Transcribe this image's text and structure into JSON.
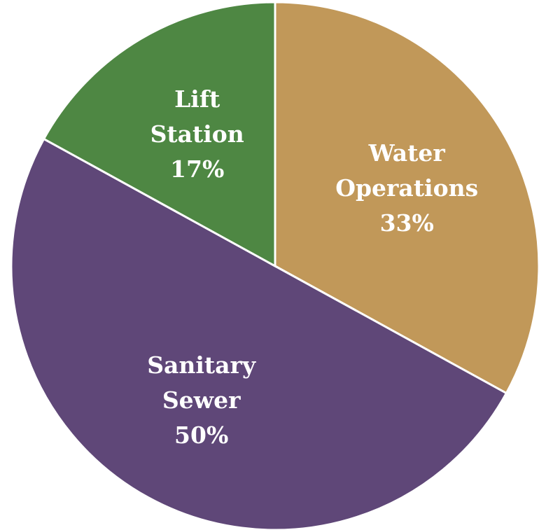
{
  "chart_data": {
    "type": "pie",
    "categories": [
      "Water Operations",
      "Sanitary Sewer",
      "Lift Station"
    ],
    "values": [
      33,
      50,
      17
    ],
    "value_labels": [
      "33%",
      "50%",
      "17%"
    ],
    "colors": [
      "#c19859",
      "#5f4778",
      "#4e8743"
    ]
  }
}
